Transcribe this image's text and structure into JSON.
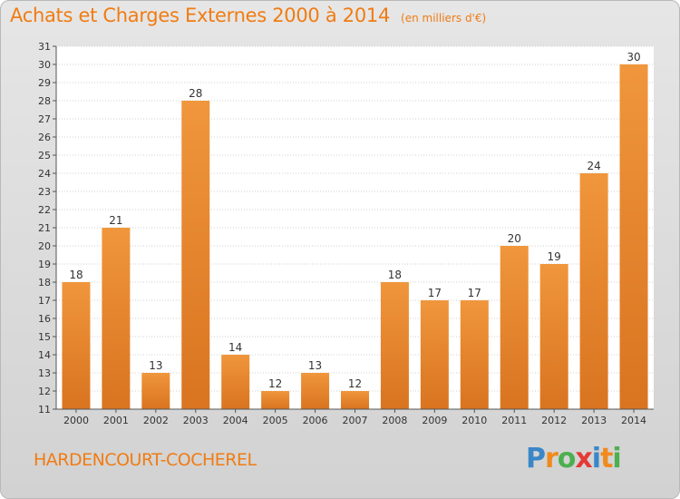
{
  "header": {
    "title": "Achats et Charges Externes 2000 à 2014",
    "unit": "(en milliers d'€)"
  },
  "footer": {
    "commune": "HARDENCOURT-COCHEREL",
    "brand": "Proxiti",
    "brand_letter_colors": [
      "#3a86c8",
      "#f08a1e",
      "#4caf50",
      "#e53935",
      "#3a86c8",
      "#f08a1e",
      "#4caf50"
    ]
  },
  "chart_data": {
    "type": "bar",
    "title": "Achats et Charges Externes 2000 à 2014",
    "subtitle": "(en milliers d'€)",
    "xlabel": "",
    "ylabel": "",
    "categories": [
      "2000",
      "2001",
      "2002",
      "2003",
      "2004",
      "2005",
      "2006",
      "2007",
      "2008",
      "2009",
      "2010",
      "2011",
      "2012",
      "2013",
      "2014"
    ],
    "values": [
      18,
      21,
      13,
      28,
      14,
      12,
      13,
      12,
      18,
      17,
      17,
      20,
      19,
      24,
      30
    ],
    "ylim": [
      11,
      31
    ],
    "yticks": [
      11,
      12,
      13,
      14,
      15,
      16,
      17,
      18,
      19,
      20,
      21,
      22,
      23,
      24,
      25,
      26,
      27,
      28,
      29,
      30,
      31
    ],
    "grid": true,
    "data_labels": true,
    "bar_color": "#f0963c",
    "bar_color_dark": "#d97420",
    "grid_color": "#cfcfcf",
    "plot_background": "#ffffff"
  }
}
